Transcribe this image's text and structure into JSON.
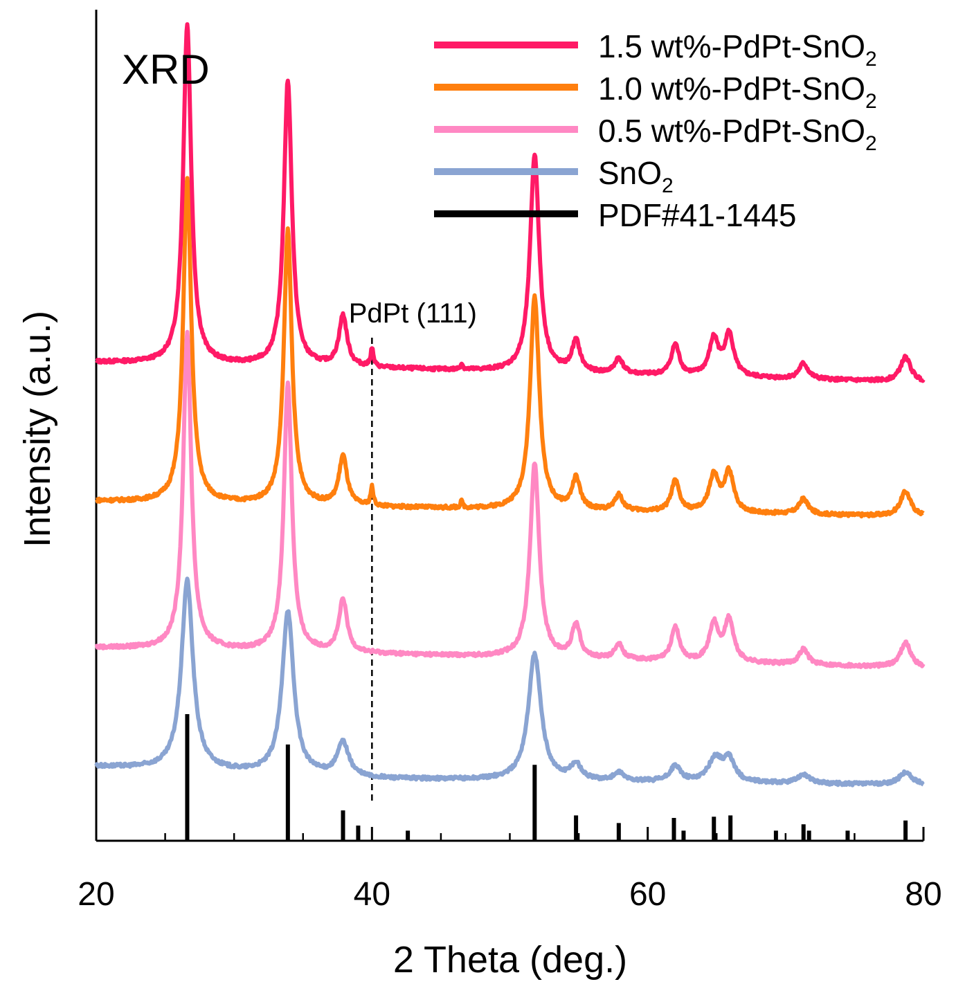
{
  "chart_data": {
    "type": "line",
    "title": "",
    "panel_label": "XRD",
    "xlabel": "2 Theta (deg.)",
    "ylabel": "Intensity (a.u.)",
    "xlim": [
      20,
      80
    ],
    "x_ticks": [
      20,
      40,
      60,
      80
    ],
    "x_minor_ticks": [
      25,
      30,
      35,
      45,
      50,
      55,
      65,
      70,
      75
    ],
    "y_ticks_shown": false,
    "legend_position": "top-right",
    "series": [
      {
        "name": "1.5 wt%-PdPt-SnO2",
        "legend_main": "1.5 wt%-PdPt-SnO",
        "legend_sub": "2",
        "color": "#ff1a66",
        "offset": 27,
        "baseline": [
          [
            20,
            1.0
          ],
          [
            40,
            0.6
          ],
          [
            80,
            -0.3
          ]
        ],
        "peaks": [
          [
            26.6,
            22,
            0.35
          ],
          [
            33.9,
            18.5,
            0.35
          ],
          [
            37.9,
            3.3,
            0.35
          ],
          [
            40.0,
            1.2,
            0.12
          ],
          [
            46.5,
            0.4,
            0.1
          ],
          [
            51.8,
            14.1,
            0.4
          ],
          [
            54.8,
            2.0,
            0.35
          ],
          [
            57.9,
            1.0,
            0.35
          ],
          [
            62.0,
            2.0,
            0.35
          ],
          [
            64.8,
            2.4,
            0.4
          ],
          [
            65.9,
            2.7,
            0.4
          ],
          [
            71.3,
            1.0,
            0.4
          ],
          [
            78.7,
            1.6,
            0.45
          ]
        ]
      },
      {
        "name": "1.0 wt%-PdPt-SnO2",
        "legend_main": "1.0 wt%-PdPt-SnO",
        "legend_sub": "2",
        "color": "#ff7f0e",
        "offset": 18,
        "baseline": [
          [
            20,
            1.0
          ],
          [
            40,
            0.6
          ],
          [
            80,
            0.0
          ]
        ],
        "peaks": [
          [
            26.6,
            21,
            0.35
          ],
          [
            33.9,
            17.8,
            0.35
          ],
          [
            37.9,
            3.2,
            0.35
          ],
          [
            40.0,
            1.2,
            0.12
          ],
          [
            46.5,
            0.4,
            0.1
          ],
          [
            51.8,
            13.8,
            0.4
          ],
          [
            54.8,
            2.0,
            0.35
          ],
          [
            57.9,
            1.0,
            0.35
          ],
          [
            62.0,
            2.0,
            0.35
          ],
          [
            64.8,
            2.4,
            0.4
          ],
          [
            65.9,
            2.6,
            0.4
          ],
          [
            71.3,
            1.0,
            0.4
          ],
          [
            78.7,
            1.6,
            0.45
          ]
        ]
      },
      {
        "name": "0.5 wt%-PdPt-SnO2",
        "legend_main": "0.5 wt%-PdPt-SnO",
        "legend_sub": "2",
        "color": "#ff88c3",
        "offset": 8.5,
        "baseline": [
          [
            20,
            1.0
          ],
          [
            40,
            0.6
          ],
          [
            80,
            -0.3
          ]
        ],
        "peaks": [
          [
            26.6,
            20.5,
            0.35
          ],
          [
            33.9,
            17.4,
            0.35
          ],
          [
            37.9,
            3.4,
            0.35
          ],
          [
            51.8,
            12.6,
            0.4
          ],
          [
            54.8,
            2.2,
            0.35
          ],
          [
            57.9,
            1.0,
            0.35
          ],
          [
            62.0,
            2.2,
            0.35
          ],
          [
            64.8,
            2.4,
            0.4
          ],
          [
            65.9,
            2.7,
            0.4
          ],
          [
            71.3,
            1.0,
            0.4
          ],
          [
            78.7,
            1.6,
            0.45
          ]
        ]
      },
      {
        "name": "SnO2",
        "legend_main": "SnO",
        "legend_sub": "2",
        "color": "#8aa4d2",
        "offset": 0,
        "baseline": [
          [
            20,
            1.8
          ],
          [
            40,
            1.0
          ],
          [
            80,
            0.6
          ]
        ],
        "peaks": [
          [
            26.6,
            12.3,
            0.5
          ],
          [
            33.9,
            10.6,
            0.5
          ],
          [
            37.9,
            2.2,
            0.5
          ],
          [
            51.8,
            8.2,
            0.55
          ],
          [
            54.8,
            1.0,
            0.45
          ],
          [
            57.9,
            0.5,
            0.45
          ],
          [
            62.0,
            1.0,
            0.45
          ],
          [
            64.9,
            1.5,
            0.6
          ],
          [
            65.9,
            1.4,
            0.5
          ],
          [
            71.3,
            0.6,
            0.5
          ],
          [
            78.7,
            0.8,
            0.55
          ]
        ]
      }
    ],
    "reference": {
      "name": "PDF#41-1445",
      "color": "#000000",
      "sticks": [
        [
          26.6,
          100
        ],
        [
          33.9,
          76
        ],
        [
          37.9,
          24
        ],
        [
          39.0,
          12
        ],
        [
          42.6,
          8
        ],
        [
          51.8,
          60
        ],
        [
          54.8,
          20
        ],
        [
          57.9,
          14
        ],
        [
          61.9,
          18
        ],
        [
          62.6,
          8
        ],
        [
          64.8,
          19
        ],
        [
          66.0,
          20
        ],
        [
          69.3,
          8
        ],
        [
          71.3,
          13
        ],
        [
          71.7,
          8
        ],
        [
          74.5,
          8
        ],
        [
          78.7,
          16
        ]
      ]
    },
    "annotation": {
      "text": "PdPt (111)",
      "x": 40.0
    }
  }
}
